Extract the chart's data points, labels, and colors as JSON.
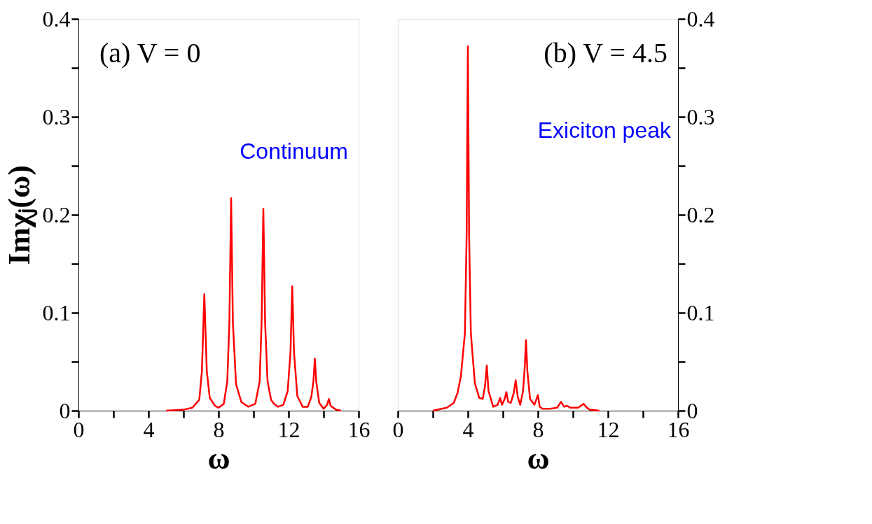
{
  "chart_data": [
    {
      "type": "line",
      "xlabel": "ω",
      "ylabel": "Imχⱼ(ω)",
      "annotations": [
        "(a) V = 0",
        "Continuum"
      ],
      "xlim": [
        0,
        16
      ],
      "ylim": [
        0,
        0.4
      ],
      "xticks": [
        0,
        {
          "value": 2,
          "label": null
        },
        4,
        {
          "value": 6,
          "label": null
        },
        8,
        {
          "value": 10,
          "label": null
        },
        12,
        {
          "value": 14,
          "label": null
        },
        16
      ],
      "yticks": [
        0,
        {
          "value": 0.05,
          "label": null
        },
        0.1,
        {
          "value": 0.15,
          "label": null
        },
        0.2,
        {
          "value": 0.25,
          "label": null
        },
        0.3,
        {
          "value": 0.35,
          "label": null
        },
        0.4
      ],
      "grid": false,
      "marker": "none",
      "line_style": "solid",
      "series": [
        {
          "color": "#ff0000",
          "x": [
            5.0,
            6.0,
            6.5,
            6.9,
            7.05,
            7.19,
            7.33,
            7.5,
            7.8,
            8.0,
            8.3,
            8.5,
            8.62,
            8.72,
            8.82,
            9.0,
            9.3,
            9.7,
            10.1,
            10.35,
            10.46,
            10.56,
            10.66,
            10.8,
            11.0,
            11.17,
            11.4,
            11.7,
            11.95,
            12.11,
            12.21,
            12.31,
            12.5,
            12.8,
            13.1,
            13.3,
            13.42,
            13.5,
            13.58,
            13.75,
            14.0,
            14.2,
            14.3,
            14.4,
            14.7,
            15.0
          ],
          "values": [
            0,
            0.001,
            0.003,
            0.011,
            0.04,
            0.119,
            0.04,
            0.013,
            0.005,
            0.003,
            0.007,
            0.03,
            0.09,
            0.217,
            0.09,
            0.027,
            0.009,
            0.004,
            0.007,
            0.03,
            0.09,
            0.206,
            0.09,
            0.03,
            0.011,
            0.007,
            0.004,
            0.006,
            0.02,
            0.06,
            0.127,
            0.06,
            0.015,
            0.004,
            0.004,
            0.014,
            0.03,
            0.053,
            0.03,
            0.008,
            0.002,
            0.006,
            0.012,
            0.005,
            0.001,
            0
          ]
        }
      ]
    },
    {
      "type": "line",
      "xlabel": "ω",
      "annotations": [
        "(b) V = 4.5",
        "Exiciton peak"
      ],
      "xlim": [
        0,
        16
      ],
      "ylim": [
        0,
        0.4
      ],
      "xticks": [
        0,
        {
          "value": 2,
          "label": null
        },
        4,
        {
          "value": 6,
          "label": null
        },
        8,
        {
          "value": 10,
          "label": null
        },
        12,
        {
          "value": 14,
          "label": null
        },
        16
      ],
      "yticks": [
        0,
        {
          "value": 0.05,
          "label": null
        },
        0.1,
        {
          "value": 0.15,
          "label": null
        },
        0.2,
        {
          "value": 0.25,
          "label": null
        },
        0.3,
        {
          "value": 0.35,
          "label": null
        },
        0.4
      ],
      "grid": false,
      "marker": "none",
      "line_style": "solid",
      "series": [
        {
          "color": "#ff0000",
          "x": [
            2.0,
            2.8,
            3.2,
            3.41,
            3.6,
            3.83,
            3.93,
            4.0,
            4.07,
            4.17,
            4.4,
            4.65,
            4.85,
            4.98,
            5.08,
            5.18,
            5.45,
            5.7,
            5.84,
            5.95,
            6.1,
            6.2,
            6.3,
            6.45,
            6.62,
            6.73,
            6.85,
            6.99,
            7.15,
            7.25,
            7.32,
            7.4,
            7.55,
            7.8,
            8.0,
            8.1,
            8.26,
            8.7,
            9.1,
            9.32,
            9.5,
            9.67,
            9.85,
            10.3,
            10.6,
            10.8,
            10.95,
            11.5
          ],
          "values": [
            0,
            0.003,
            0.008,
            0.018,
            0.035,
            0.079,
            0.18,
            0.372,
            0.18,
            0.079,
            0.028,
            0.013,
            0.012,
            0.025,
            0.046,
            0.02,
            0.004,
            0.006,
            0.013,
            0.006,
            0.012,
            0.019,
            0.009,
            0.008,
            0.018,
            0.031,
            0.014,
            0.006,
            0.02,
            0.045,
            0.072,
            0.04,
            0.012,
            0.006,
            0.016,
            0.004,
            0.002,
            0.002,
            0.003,
            0.009,
            0.004,
            0.005,
            0.003,
            0.003,
            0.007,
            0.003,
            0.001,
            0
          ]
        }
      ]
    }
  ]
}
